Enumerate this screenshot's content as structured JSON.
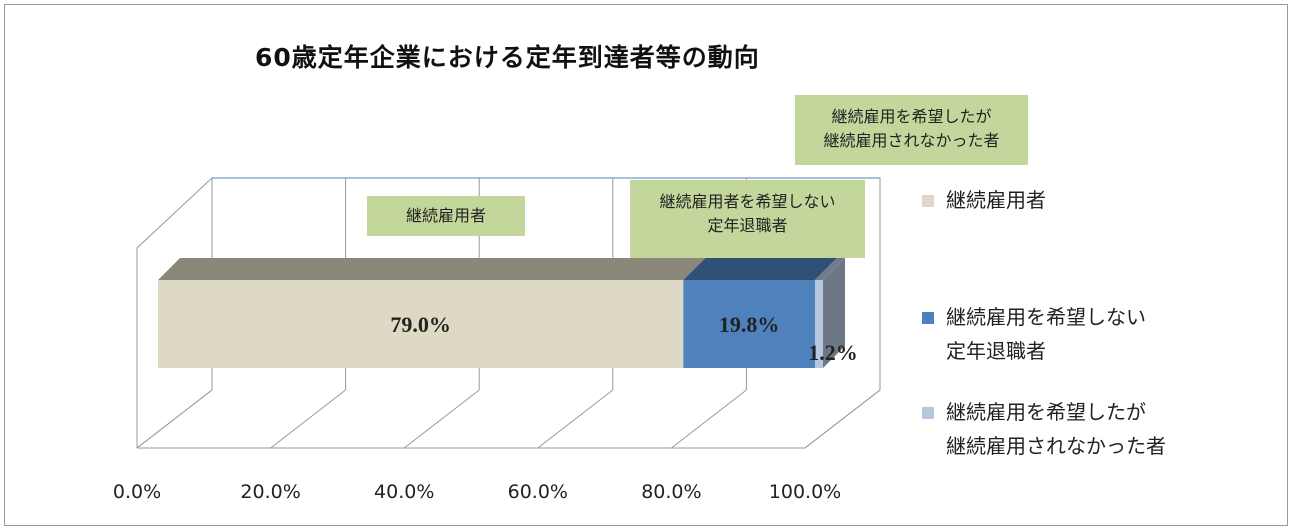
{
  "chart_data": {
    "type": "bar3d_stacked_horizontal",
    "title": "60歳定年企業における定年到達者等の動向",
    "series": [
      {
        "name": "継続雇用者",
        "color": "#ddd9c4",
        "values": [
          79.0
        ],
        "value_labels": [
          "79.0%"
        ]
      },
      {
        "name": "継続雇用を希望しない\n定年退職者",
        "color": "#4f81bd",
        "values": [
          19.8
        ],
        "value_labels": [
          "19.8%"
        ]
      },
      {
        "name": "継続雇用を希望したが\n継続雇用されなかった者",
        "color": "#b8c7e0",
        "values": [
          1.2
        ],
        "value_labels": [
          "1.2%"
        ]
      }
    ],
    "annotations": [
      "継続雇用者",
      "継続雇用者を希望しない\n定年退職者",
      "継続雇用を希望したが\n継続雇用されなかった者"
    ],
    "xlim": [
      0,
      100
    ],
    "xticks": [
      {
        "value": 0,
        "label": "0.0%"
      },
      {
        "value": 20,
        "label": "20.0%"
      },
      {
        "value": 40,
        "label": "40.0%"
      },
      {
        "value": 60,
        "label": "60.0%"
      },
      {
        "value": 80,
        "label": "80.0%"
      },
      {
        "value": 100,
        "label": "100.0%"
      }
    ],
    "grid": true,
    "legend": "right"
  }
}
